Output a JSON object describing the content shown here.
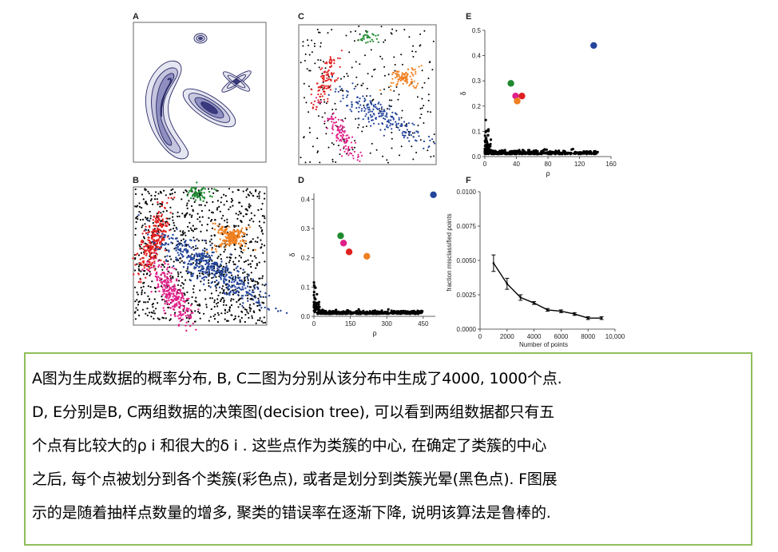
{
  "panels": {
    "a_label": "A",
    "b_label": "B",
    "c_label": "C",
    "d_label": "D",
    "e_label": "E",
    "f_label": "F"
  },
  "colors": {
    "red": "#e02020",
    "pink": "#e0208a",
    "blue": "#23449a",
    "orange": "#f08020",
    "green": "#1f8a30",
    "black": "#000000",
    "density": "#2a2a66",
    "caption_border": "#8fbf5a"
  },
  "chart_data": [
    {
      "panel": "D",
      "type": "scatter",
      "xlabel": "ρ",
      "ylabel": "δ",
      "xlim": [
        0,
        500
      ],
      "ylim": [
        0,
        0.42
      ],
      "xticks": [
        0,
        150,
        300,
        450
      ],
      "yticks": [
        0.0,
        0.1,
        0.2,
        0.3,
        0.4
      ],
      "ytick_labels": [
        "0.0",
        "0.1",
        "0.2",
        "0.3",
        "0.4"
      ],
      "centers": [
        {
          "color": "green",
          "x": 110,
          "y": 0.275
        },
        {
          "color": "pink",
          "x": 122,
          "y": 0.25
        },
        {
          "color": "red",
          "x": 145,
          "y": 0.22
        },
        {
          "color": "orange",
          "x": 218,
          "y": 0.205
        },
        {
          "color": "blue",
          "x": 492,
          "y": 0.415
        }
      ]
    },
    {
      "panel": "E",
      "type": "scatter",
      "xlabel": "ρ",
      "ylabel": "δ",
      "xlim": [
        0,
        160
      ],
      "ylim": [
        0,
        0.5
      ],
      "xticks": [
        0,
        40,
        80,
        120,
        160
      ],
      "yticks": [
        0.0,
        0.1,
        0.2,
        0.3,
        0.4,
        0.5
      ],
      "ytick_labels": [
        "0.0",
        "0.1",
        "0.2",
        "0.3",
        "0.4",
        "0.5"
      ],
      "centers": [
        {
          "color": "green",
          "x": 33,
          "y": 0.29
        },
        {
          "color": "pink",
          "x": 39,
          "y": 0.24
        },
        {
          "color": "red",
          "x": 47,
          "y": 0.24
        },
        {
          "color": "orange",
          "x": 41,
          "y": 0.22
        },
        {
          "color": "blue",
          "x": 138,
          "y": 0.44
        }
      ]
    },
    {
      "panel": "F",
      "type": "line",
      "xlabel": "Number of points",
      "ylabel": "fraction misclassified points",
      "xlim": [
        0,
        10000
      ],
      "ylim": [
        0,
        0.01
      ],
      "xticks": [
        0,
        2000,
        4000,
        6000,
        8000,
        10000
      ],
      "xtick_labels": [
        "0",
        "2000",
        "4000",
        "6000",
        "8000",
        "10,000"
      ],
      "yticks": [
        0.0,
        0.0025,
        0.005,
        0.0075,
        0.01
      ],
      "ytick_labels": [
        "0.0000",
        "0.0025",
        "0.0050",
        "0.0075",
        "0.0100"
      ],
      "x": [
        1000,
        2000,
        3000,
        4000,
        5000,
        6000,
        7000,
        8000,
        9000
      ],
      "y": [
        0.0048,
        0.0033,
        0.0023,
        0.0019,
        0.0014,
        0.0013,
        0.0011,
        0.0008,
        0.0008
      ],
      "err": [
        0.0006,
        0.0004,
        0.0002,
        0.0001,
        0.0001,
        0.0001,
        0.0001,
        0.0001,
        0.0001
      ]
    }
  ],
  "caption": {
    "lines": [
      "A图为生成数据的概率分布, B, C二图为分别从该分布中生成了4000, 1000个点.",
      "D, E分别是B, C两组数据的决策图(decision tree), 可以看到两组数据都只有五",
      "个点有比较大的ρ i 和很大的δ i . 这些点作为类簇的中心, 在确定了类簇的中心",
      "之后, 每个点被划分到各个类簇(彩色点), 或者是划分到类簇光晕(黑色点). F图展",
      "示的是随着抽样点数量的增多, 聚类的错误率在逐渐下降, 说明该算法是鲁棒的."
    ]
  }
}
